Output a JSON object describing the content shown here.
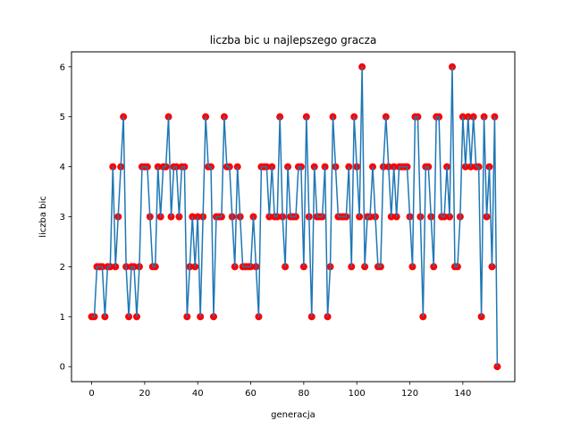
{
  "chart_data": {
    "type": "line",
    "title": "liczba bic u najlepszego gracza",
    "xlabel": "generacja",
    "ylabel": "liczba bic",
    "xlim": [
      -7.6,
      159.6
    ],
    "ylim": [
      -0.3,
      6.3
    ],
    "xticks": [
      0,
      20,
      40,
      60,
      80,
      100,
      120,
      140
    ],
    "yticks": [
      0,
      1,
      2,
      3,
      4,
      5,
      6
    ],
    "grid": false,
    "legend": false,
    "line_color": "#1f77b4",
    "marker_color": "#ff0000",
    "series": [
      {
        "values": [
          1,
          1,
          2,
          2,
          2,
          1,
          2,
          2,
          4,
          2,
          3,
          4,
          5,
          2,
          1,
          2,
          2,
          1,
          2,
          4,
          4,
          4,
          3,
          2,
          2,
          4,
          3,
          4,
          4,
          5,
          3,
          4,
          4,
          3,
          4,
          4,
          1,
          2,
          3,
          2,
          3,
          1,
          3,
          5,
          4,
          4,
          1,
          3,
          3,
          3,
          5,
          4,
          4,
          3,
          2,
          4,
          3,
          2,
          2,
          2,
          2,
          3,
          2,
          1,
          4,
          4,
          4,
          3,
          4,
          3,
          3,
          5,
          3,
          2,
          4,
          3,
          3,
          3,
          4,
          4,
          2,
          5,
          3,
          1,
          4,
          3,
          3,
          3,
          4,
          1,
          2,
          5,
          4,
          3,
          3,
          3,
          3,
          4,
          2,
          5,
          4,
          3,
          6,
          2,
          3,
          3,
          4,
          3,
          2,
          2,
          4,
          5,
          4,
          3,
          4,
          3,
          4,
          4,
          4,
          4,
          3,
          2,
          5,
          5,
          3,
          1,
          4,
          4,
          3,
          2,
          5,
          5,
          3,
          3,
          4,
          3,
          6,
          2,
          2,
          3,
          5,
          4,
          5,
          4,
          5,
          4,
          4,
          1,
          5,
          3,
          4,
          2,
          5,
          0
        ]
      }
    ]
  }
}
